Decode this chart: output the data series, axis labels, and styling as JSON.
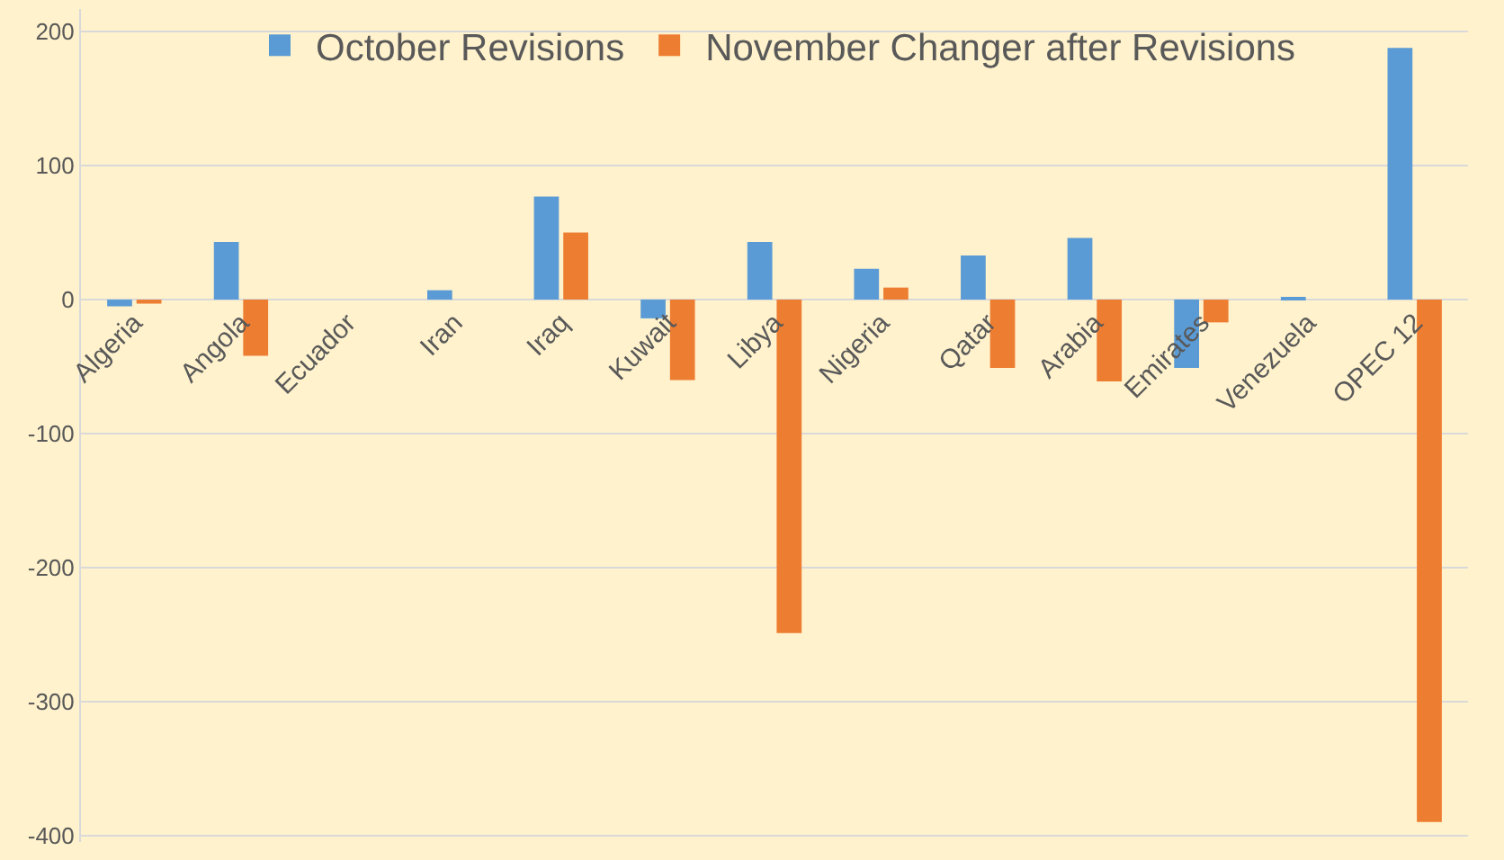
{
  "chart_data": {
    "type": "bar",
    "categories": [
      "Algeria",
      "Angola",
      "Ecuador",
      "Iran",
      "Iraq",
      "Kuwait",
      "Libya",
      "Nigeria",
      "Qatar",
      "Arabia",
      "Emirates",
      "Venezuela",
      "OPEC 12"
    ],
    "series": [
      {
        "name": "October Revisions",
        "color": "#5b9bd5",
        "values": [
          -5,
          43,
          0,
          7,
          77,
          -14,
          43,
          23,
          33,
          46,
          -51,
          1,
          188
        ]
      },
      {
        "name": "November Changer after Revisions",
        "color": "#ed7d31",
        "values": [
          -3,
          -42,
          0,
          0,
          50,
          -60,
          -249,
          9,
          -51,
          -61,
          -17,
          0,
          -390
        ]
      }
    ],
    "ylim": [
      -405,
      217
    ],
    "yticks": [
      -400,
      -300,
      -200,
      -100,
      0,
      100,
      200
    ],
    "grid": "y",
    "legend": "top"
  }
}
